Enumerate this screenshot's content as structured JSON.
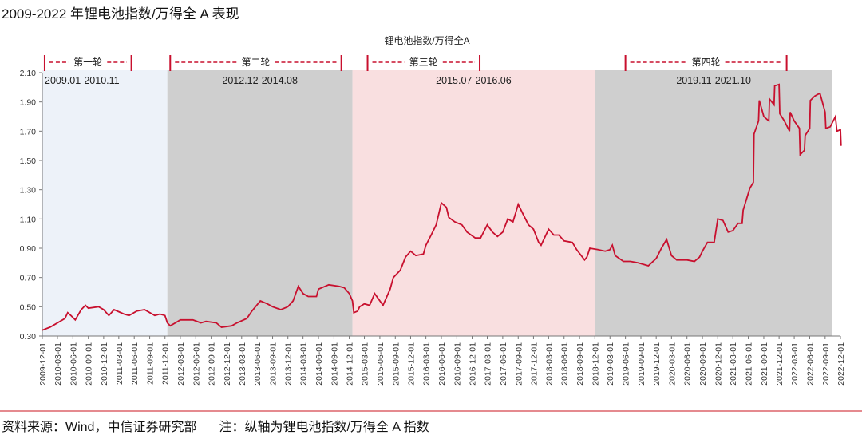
{
  "title": "2009-2022 年锂电池指数/万得全 A 表现",
  "footer": {
    "source": "资料来源：Wind，中信证券研究部",
    "note": "注：纵轴为锂电池指数/万得全 A 指数"
  },
  "chart_data": {
    "type": "line",
    "title": "",
    "xlabel": "",
    "ylabel": "",
    "grid": false,
    "legend_position": "top",
    "series": [
      {
        "name": "锂电池指数/万得全A",
        "color": "#c8102e",
        "points": [
          [
            "2009-12-01",
            0.34
          ],
          [
            "2010-01-15",
            0.36
          ],
          [
            "2010-02-15",
            0.38
          ],
          [
            "2010-04-15",
            0.42
          ],
          [
            "2010-05-01",
            0.46
          ],
          [
            "2010-05-20",
            0.44
          ],
          [
            "2010-06-15",
            0.41
          ],
          [
            "2010-07-20",
            0.48
          ],
          [
            "2010-08-15",
            0.51
          ],
          [
            "2010-09-01",
            0.49
          ],
          [
            "2010-11-01",
            0.5
          ],
          [
            "2010-12-01",
            0.48
          ],
          [
            "2011-01-01",
            0.44
          ],
          [
            "2011-02-01",
            0.48
          ],
          [
            "2011-04-01",
            0.45
          ],
          [
            "2011-05-01",
            0.44
          ],
          [
            "2011-06-15",
            0.47
          ],
          [
            "2011-08-01",
            0.48
          ],
          [
            "2011-10-01",
            0.44
          ],
          [
            "2011-11-01",
            0.45
          ],
          [
            "2011-12-01",
            0.44
          ],
          [
            "2011-12-15",
            0.39
          ],
          [
            "2012-01-01",
            0.37
          ],
          [
            "2012-02-01",
            0.39
          ],
          [
            "2012-03-01",
            0.41
          ],
          [
            "2012-05-15",
            0.41
          ],
          [
            "2012-07-01",
            0.39
          ],
          [
            "2012-08-01",
            0.4
          ],
          [
            "2012-10-01",
            0.39
          ],
          [
            "2012-11-01",
            0.36
          ],
          [
            "2013-01-01",
            0.37
          ],
          [
            "2013-02-01",
            0.39
          ],
          [
            "2013-04-01",
            0.42
          ],
          [
            "2013-05-01",
            0.47
          ],
          [
            "2013-06-20",
            0.54
          ],
          [
            "2013-08-01",
            0.52
          ],
          [
            "2013-09-01",
            0.5
          ],
          [
            "2013-10-20",
            0.48
          ],
          [
            "2013-12-01",
            0.5
          ],
          [
            "2014-01-01",
            0.54
          ],
          [
            "2014-02-01",
            0.64
          ],
          [
            "2014-03-01",
            0.59
          ],
          [
            "2014-04-01",
            0.57
          ],
          [
            "2014-05-20",
            0.57
          ],
          [
            "2014-06-01",
            0.62
          ],
          [
            "2014-08-01",
            0.65
          ],
          [
            "2014-10-01",
            0.64
          ],
          [
            "2014-11-01",
            0.63
          ],
          [
            "2014-12-01",
            0.59
          ],
          [
            "2014-12-20",
            0.54
          ],
          [
            "2014-12-28",
            0.46
          ],
          [
            "2015-01-20",
            0.47
          ],
          [
            "2015-02-01",
            0.5
          ],
          [
            "2015-03-01",
            0.52
          ],
          [
            "2015-04-01",
            0.51
          ],
          [
            "2015-05-01",
            0.59
          ],
          [
            "2015-06-20",
            0.51
          ],
          [
            "2015-08-01",
            0.62
          ],
          [
            "2015-08-20",
            0.7
          ],
          [
            "2015-10-01",
            0.75
          ],
          [
            "2015-11-01",
            0.84
          ],
          [
            "2015-12-01",
            0.88
          ],
          [
            "2016-01-01",
            0.85
          ],
          [
            "2016-02-15",
            0.86
          ],
          [
            "2016-03-01",
            0.92
          ],
          [
            "2016-04-01",
            0.99
          ],
          [
            "2016-05-01",
            1.06
          ],
          [
            "2016-06-01",
            1.21
          ],
          [
            "2016-07-01",
            1.18
          ],
          [
            "2016-07-15",
            1.11
          ],
          [
            "2016-08-20",
            1.08
          ],
          [
            "2016-10-01",
            1.06
          ],
          [
            "2016-11-01",
            1.01
          ],
          [
            "2016-12-20",
            0.97
          ],
          [
            "2017-01-20",
            0.97
          ],
          [
            "2017-03-01",
            1.06
          ],
          [
            "2017-04-01",
            1.01
          ],
          [
            "2017-05-01",
            0.98
          ],
          [
            "2017-06-01",
            1.01
          ],
          [
            "2017-07-01",
            1.1
          ],
          [
            "2017-08-01",
            1.08
          ],
          [
            "2017-09-01",
            1.2
          ],
          [
            "2017-10-01",
            1.13
          ],
          [
            "2017-11-01",
            1.06
          ],
          [
            "2017-12-01",
            1.03
          ],
          [
            "2018-01-01",
            0.94
          ],
          [
            "2018-01-15",
            0.92
          ],
          [
            "2018-03-01",
            1.03
          ],
          [
            "2018-04-01",
            0.99
          ],
          [
            "2018-05-01",
            0.99
          ],
          [
            "2018-06-01",
            0.95
          ],
          [
            "2018-07-20",
            0.94
          ],
          [
            "2018-08-15",
            0.89
          ],
          [
            "2018-10-01",
            0.82
          ],
          [
            "2018-10-15",
            0.84
          ],
          [
            "2018-11-01",
            0.9
          ],
          [
            "2018-12-20",
            0.89
          ],
          [
            "2019-02-01",
            0.88
          ],
          [
            "2019-03-01",
            0.89
          ],
          [
            "2019-03-15",
            0.92
          ],
          [
            "2019-04-01",
            0.85
          ],
          [
            "2019-05-20",
            0.81
          ],
          [
            "2019-07-01",
            0.81
          ],
          [
            "2019-08-15",
            0.8
          ],
          [
            "2019-10-15",
            0.78
          ],
          [
            "2019-12-01",
            0.83
          ],
          [
            "2020-01-01",
            0.9
          ],
          [
            "2020-02-01",
            0.96
          ],
          [
            "2020-03-01",
            0.85
          ],
          [
            "2020-04-01",
            0.82
          ],
          [
            "2020-06-01",
            0.82
          ],
          [
            "2020-07-15",
            0.81
          ],
          [
            "2020-08-15",
            0.84
          ],
          [
            "2020-09-01",
            0.88
          ],
          [
            "2020-10-01",
            0.94
          ],
          [
            "2020-11-10",
            0.94
          ],
          [
            "2020-12-01",
            1.1
          ],
          [
            "2021-01-01",
            1.09
          ],
          [
            "2021-02-01",
            1.01
          ],
          [
            "2021-03-01",
            1.02
          ],
          [
            "2021-04-01",
            1.07
          ],
          [
            "2021-04-25",
            1.07
          ],
          [
            "2021-05-01",
            1.16
          ],
          [
            "2021-06-10",
            1.31
          ],
          [
            "2021-07-01",
            1.35
          ],
          [
            "2021-07-05",
            1.68
          ],
          [
            "2021-08-01",
            1.77
          ],
          [
            "2021-08-05",
            1.91
          ],
          [
            "2021-09-01",
            1.8
          ],
          [
            "2021-10-01",
            1.77
          ],
          [
            "2021-10-05",
            1.92
          ],
          [
            "2021-11-01",
            1.88
          ],
          [
            "2021-11-05",
            2.01
          ],
          [
            "2021-12-01",
            2.02
          ],
          [
            "2021-12-05",
            1.82
          ],
          [
            "2022-01-01",
            1.77
          ],
          [
            "2022-02-01",
            1.7
          ],
          [
            "2022-02-05",
            1.83
          ],
          [
            "2022-03-01",
            1.77
          ],
          [
            "2022-04-01",
            1.72
          ],
          [
            "2022-04-05",
            1.54
          ],
          [
            "2022-05-01",
            1.57
          ],
          [
            "2022-05-05",
            1.67
          ],
          [
            "2022-06-01",
            1.72
          ],
          [
            "2022-06-05",
            1.91
          ],
          [
            "2022-07-01",
            1.94
          ],
          [
            "2022-08-01",
            1.96
          ],
          [
            "2022-09-01",
            1.83
          ],
          [
            "2022-09-05",
            1.72
          ],
          [
            "2022-10-01",
            1.73
          ],
          [
            "2022-11-01",
            1.8
          ],
          [
            "2022-11-10",
            1.7
          ],
          [
            "2022-12-01",
            1.71
          ],
          [
            "2022-12-05",
            1.6
          ]
        ]
      }
    ],
    "xlim": [
      "2009-12-01",
      "2022-12-01"
    ],
    "ylim": [
      0.3,
      2.1
    ],
    "y_ticks": [
      "0.30",
      "0.50",
      "0.70",
      "0.90",
      "1.10",
      "1.30",
      "1.50",
      "1.70",
      "1.90",
      "2.10"
    ],
    "x_ticks": [
      "2009-12-01",
      "2010-03-01",
      "2010-06-01",
      "2010-09-01",
      "2010-12-01",
      "2011-03-01",
      "2011-06-01",
      "2011-09-01",
      "2011-12-01",
      "2012-03-01",
      "2012-06-01",
      "2012-09-01",
      "2012-12-01",
      "2013-03-01",
      "2013-06-01",
      "2013-09-01",
      "2013-12-01",
      "2014-03-01",
      "2014-06-01",
      "2014-09-01",
      "2014-12-01",
      "2015-03-01",
      "2015-06-01",
      "2015-09-01",
      "2015-12-01",
      "2016-03-01",
      "2016-06-01",
      "2016-09-01",
      "2016-12-01",
      "2017-03-01",
      "2017-06-01",
      "2017-09-01",
      "2017-12-01",
      "2018-03-01",
      "2018-06-01",
      "2018-09-01",
      "2018-12-01",
      "2019-03-01",
      "2019-06-01",
      "2019-09-01",
      "2019-12-01",
      "2020-03-01",
      "2020-06-01",
      "2020-09-01",
      "2020-12-01",
      "2021-03-01",
      "2021-06-01",
      "2021-09-01",
      "2021-12-01",
      "2022-03-01",
      "2022-06-01",
      "2022-09-01",
      "2022-12-01"
    ],
    "shaded_regions": [
      {
        "start": "2009-12-01",
        "end": "2011-12-15",
        "color": "#edf2f9",
        "label": "2009.01-2010.11"
      },
      {
        "start": "2011-12-15",
        "end": "2014-12-20",
        "color": "#cfcfcf",
        "label": "2012.12-2014.08"
      },
      {
        "start": "2014-12-20",
        "end": "2018-12-01",
        "color": "#f9dfe0",
        "label": "2015.07-2016.06"
      },
      {
        "start": "2018-12-01",
        "end": "2022-10-15",
        "color": "#cfcfcf",
        "label": "2019.11-2021.10"
      }
    ],
    "rounds": [
      {
        "label": "第一轮",
        "start": "2009-12-15",
        "end": "2011-05-15"
      },
      {
        "label": "第二轮",
        "start": "2012-01-01",
        "end": "2014-10-15"
      },
      {
        "label": "第三轮",
        "start": "2015-03-20",
        "end": "2017-01-15"
      },
      {
        "label": "第四轮",
        "start": "2019-06-01",
        "end": "2022-01-15"
      }
    ]
  }
}
